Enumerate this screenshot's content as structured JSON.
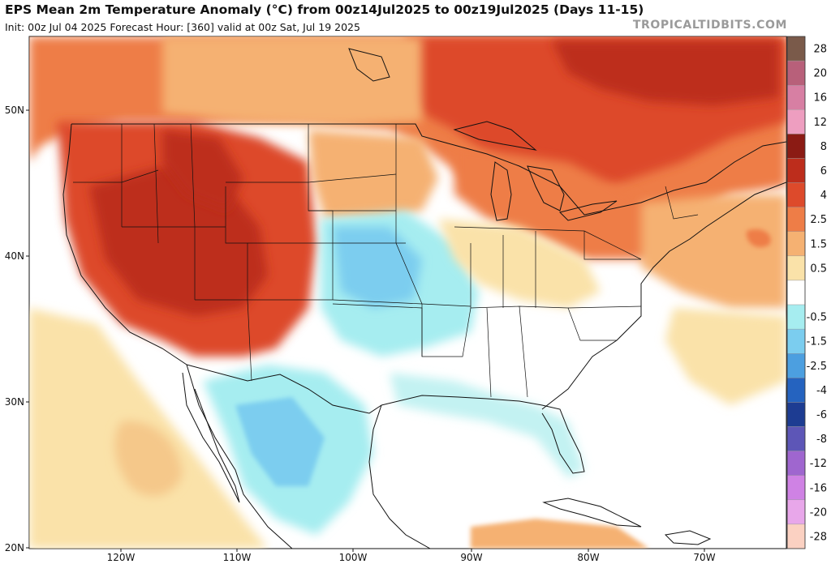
{
  "header": {
    "title": "EPS Mean 2m Temperature Anomaly (°C) from 00z14Jul2025 to 00z19Jul2025 (Days 11-15)",
    "subtitle": "Init: 00z Jul 04 2025   Forecast Hour: [360]   valid at 00z Sat, Jul 19 2025",
    "brand": "TROPICALTIDBITS.COM"
  },
  "map": {
    "region": "Continental United States",
    "variable": "2m temperature anomaly",
    "units": "°C",
    "lat_labels": [
      "50N",
      "40N",
      "30N",
      "20N"
    ],
    "lon_labels": [
      "120W",
      "110W",
      "100W",
      "90W",
      "80W",
      "70W"
    ],
    "colors": {
      "ocean": "#ffffff",
      "border": "#111111"
    }
  },
  "legend": {
    "levels": [
      {
        "label": "28",
        "color": "#7a5a4a"
      },
      {
        "label": "20",
        "color": "#b8607a"
      },
      {
        "label": "16",
        "color": "#d77fa3"
      },
      {
        "label": "12",
        "color": "#ee9ec0"
      },
      {
        "label": "8",
        "color": "#8b1b14"
      },
      {
        "label": "6",
        "color": "#bd2d1c"
      },
      {
        "label": "4",
        "color": "#dd4a2b"
      },
      {
        "label": "2.5",
        "color": "#ee7d47"
      },
      {
        "label": "1.5",
        "color": "#f5b172"
      },
      {
        "label": "0.5",
        "color": "#fae2a9"
      },
      {
        "label": "",
        "color": "#ffffff"
      },
      {
        "label": "-0.5",
        "color": "#a6edf0"
      },
      {
        "label": "-1.5",
        "color": "#7bcdef"
      },
      {
        "label": "-2.5",
        "color": "#4c9fe0"
      },
      {
        "label": "-4",
        "color": "#2563bf"
      },
      {
        "label": "-6",
        "color": "#1d3c92"
      },
      {
        "label": "-8",
        "color": "#5d56b7"
      },
      {
        "label": "-12",
        "color": "#9f66cf"
      },
      {
        "label": "-16",
        "color": "#cf82e4"
      },
      {
        "label": "-20",
        "color": "#e8a7ea"
      },
      {
        "label": "-28",
        "color": "#fbd1c2"
      }
    ]
  }
}
